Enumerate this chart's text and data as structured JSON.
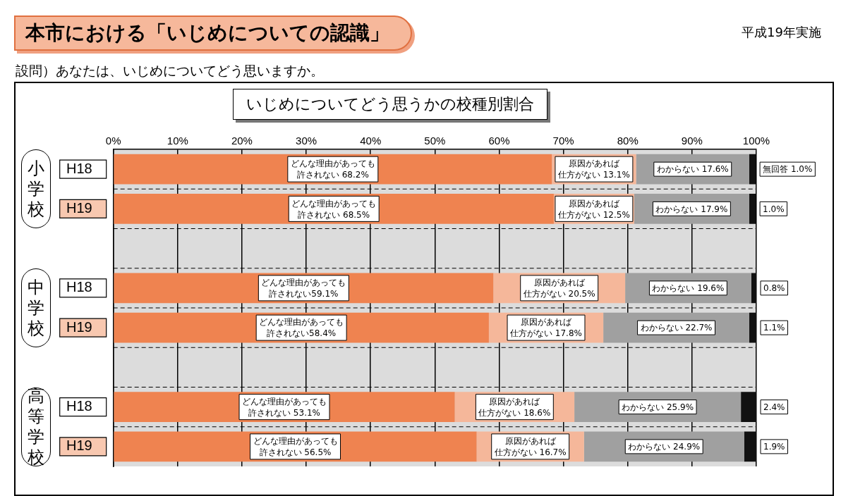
{
  "chart_data": {
    "type": "bar",
    "orientation": "horizontal",
    "stacked": true,
    "title": "本市における「いじめについての認識」",
    "subtitle": "設問）あなたは、いじめについてどう思いますか。",
    "annotations": [
      "平成19年実施",
      "いじめについてどう思うかの校種別割合",
      "小学校",
      "中学校",
      "高等学校"
    ],
    "categories": [
      "H18",
      "H19",
      null,
      "H18",
      "H19",
      null,
      "H18",
      "H19"
    ],
    "series": [
      {
        "color": "#ef8350",
        "values": [
          68.2,
          68.5,
          null,
          59.1,
          58.4,
          null,
          53.1,
          56.5
        ],
        "value_labels": [
          "どんな理由があっても許されない 68.2%",
          "どんな理由があっても許されない 68.5%",
          null,
          "どんな理由があっても許されない59.1%",
          "どんな理由があっても許されない58.4%",
          null,
          "どんな理由があっても許されない 53.1%",
          "どんな理由があっても許されない 56.5%"
        ]
      },
      {
        "color": "#f5b79a",
        "values": [
          13.1,
          12.5,
          null,
          20.5,
          17.8,
          null,
          18.6,
          16.7
        ],
        "value_labels": [
          "原因があれば仕方がない 13.1%",
          "原因があれば仕方がない 12.5%",
          null,
          "原因があれば仕方がない 20.5%",
          "原因があれば仕方がない 17.8%",
          null,
          "原因があれば仕方がない 18.6%",
          "原因があれば仕方がない 16.7%"
        ]
      },
      {
        "color": "#a0a0a0",
        "values": [
          17.6,
          17.9,
          null,
          19.6,
          22.7,
          null,
          25.9,
          24.9
        ],
        "value_labels": [
          "わからない 17.6%",
          "わからない 17.9%",
          null,
          "わからない 19.6%",
          "わからない 22.7%",
          null,
          "わからない 25.9%",
          "わからない 24.9%"
        ]
      },
      {
        "color": "#111111",
        "values": [
          1.0,
          1.0,
          null,
          0.8,
          1.1,
          null,
          2.4,
          1.9
        ],
        "value_labels": [
          "無回答 1.0%",
          "1.0%",
          null,
          "0.8%",
          "1.1%",
          null,
          "2.4%",
          "1.9%"
        ]
      }
    ],
    "xlim": [
      0,
      100
    ],
    "xticks": [
      {
        "value": 0,
        "label": "0%"
      },
      {
        "value": 10,
        "label": "10%"
      },
      {
        "value": 20,
        "label": "20%"
      },
      {
        "value": 30,
        "label": "30%"
      },
      {
        "value": 40,
        "label": "40%"
      },
      {
        "value": 50,
        "label": "50%"
      },
      {
        "value": 60,
        "label": "60%"
      },
      {
        "value": 70,
        "label": "70%"
      },
      {
        "value": 80,
        "label": "80%"
      },
      {
        "value": 90,
        "label": "90%"
      },
      {
        "value": 100,
        "label": "100%"
      }
    ],
    "grid": "x"
  }
}
